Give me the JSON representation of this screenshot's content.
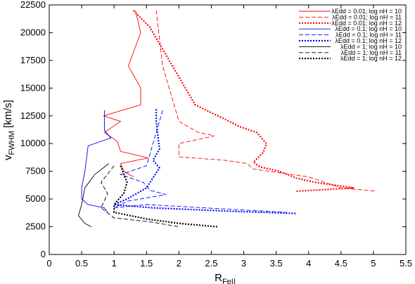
{
  "chart_data": {
    "type": "line",
    "xlabel": {
      "text": "R",
      "sub": "FeII"
    },
    "ylabel": {
      "text": "v",
      "sub": "FWHM",
      "rest": " [km/s]"
    },
    "xlim": [
      0,
      5.5
    ],
    "xticks": [
      0,
      0.5,
      1,
      1.5,
      2,
      2.5,
      3,
      3.5,
      4,
      4.5,
      5,
      5.5
    ],
    "ylim": [
      0,
      22500
    ],
    "yticks": [
      0,
      2500,
      5000,
      7500,
      10000,
      12500,
      15000,
      17500,
      20000,
      22500
    ],
    "legend": "upper right",
    "series": [
      {
        "name": "λEdd = 0.01; log nH = 10",
        "color": "#ff0000",
        "dash": "solid",
        "x": [
          1.33,
          1.41,
          1.22,
          1.41,
          1.41,
          0.84,
          1.1,
          0.85,
          1.05,
          1.1,
          1.53,
          1.1,
          1.15,
          1.3
        ],
        "values": [
          22000,
          20000,
          17000,
          15000,
          13500,
          12500,
          12000,
          11000,
          10200,
          9300,
          8700,
          8200,
          7500,
          7000
        ]
      },
      {
        "name": "λEdd = 0.01; log nH = 11",
        "color": "#ff0000",
        "dash": "dashed",
        "x": [
          1.65,
          1.75,
          1.9,
          2.0,
          2.3,
          2.55,
          2.0,
          2.0,
          2.7,
          3.05,
          3.15,
          4.0,
          4.5,
          5.05
        ],
        "values": [
          22000,
          17000,
          14000,
          12000,
          11000,
          10700,
          10000,
          8800,
          8500,
          8200,
          7700,
          7000,
          6000,
          5700
        ]
      },
      {
        "name": "λEdd = 0.01; log nH = 12",
        "color": "#ff0000",
        "dash": "dotted",
        "x": [
          1.3,
          1.55,
          1.8,
          2.0,
          2.25,
          2.6,
          2.95,
          3.2,
          3.35,
          3.3,
          3.15,
          3.25,
          3.55,
          3.8,
          4.1,
          4.7,
          3.8
        ],
        "values": [
          22000,
          20500,
          18000,
          16000,
          13500,
          12500,
          11500,
          11000,
          10000,
          9200,
          8300,
          7900,
          7500,
          6900,
          6500,
          6000,
          5700
        ]
      },
      {
        "name": "λEdd = 0.1; log nH = 10",
        "color": "#0000ff",
        "dash": "solid",
        "x": [
          0.85,
          0.85,
          0.95,
          0.6,
          0.55,
          0.5,
          0.5,
          0.6,
          0.85,
          0.9
        ],
        "values": [
          13000,
          11200,
          10500,
          9800,
          7500,
          6000,
          5000,
          4500,
          4200,
          3800
        ]
      },
      {
        "name": "λEdd = 0.1; log nH = 11",
        "color": "#0000ff",
        "dash": "dashed",
        "x": [
          1.75,
          1.6,
          1.5,
          1.1,
          1.45,
          1.55,
          1.8,
          1.2,
          1.0,
          1.5,
          2.4,
          3.65
        ],
        "values": [
          13000,
          10000,
          8000,
          7200,
          6500,
          5800,
          5400,
          4800,
          4200,
          4500,
          4200,
          3800
        ]
      },
      {
        "name": "λEdd = 0.1; log nH = 12",
        "color": "#0000ff",
        "dash": "dotted",
        "x": [
          1.65,
          1.65,
          1.7,
          1.6,
          1.7,
          1.5,
          1.2,
          1.0,
          1.6,
          2.8,
          3.8
        ],
        "values": [
          13100,
          12000,
          9500,
          8500,
          7800,
          6000,
          5000,
          4500,
          4200,
          3900,
          3700
        ]
      },
      {
        "name": "λEdd = 1; log nH = 10",
        "color": "#000000",
        "dash": "solid",
        "x": [
          0.92,
          0.7,
          0.55,
          0.5,
          0.45,
          0.55,
          0.65
        ],
        "values": [
          8200,
          7200,
          6000,
          4500,
          3500,
          2800,
          2500
        ]
      },
      {
        "name": "λEdd = 1; log nH = 11",
        "color": "#000000",
        "dash": "dashed",
        "x": [
          1.0,
          0.8,
          0.9,
          0.8,
          1.0,
          1.6,
          2.0
        ],
        "values": [
          8000,
          6500,
          5500,
          4200,
          3300,
          2900,
          2500
        ]
      },
      {
        "name": "λEdd = 1; log nH = 12",
        "color": "#000000",
        "dash": "dotted",
        "x": [
          1.1,
          1.2,
          1.15,
          1.0,
          1.0,
          1.5,
          2.0,
          2.6
        ],
        "values": [
          8000,
          6500,
          5500,
          4500,
          3800,
          3200,
          2800,
          2500
        ]
      }
    ]
  }
}
